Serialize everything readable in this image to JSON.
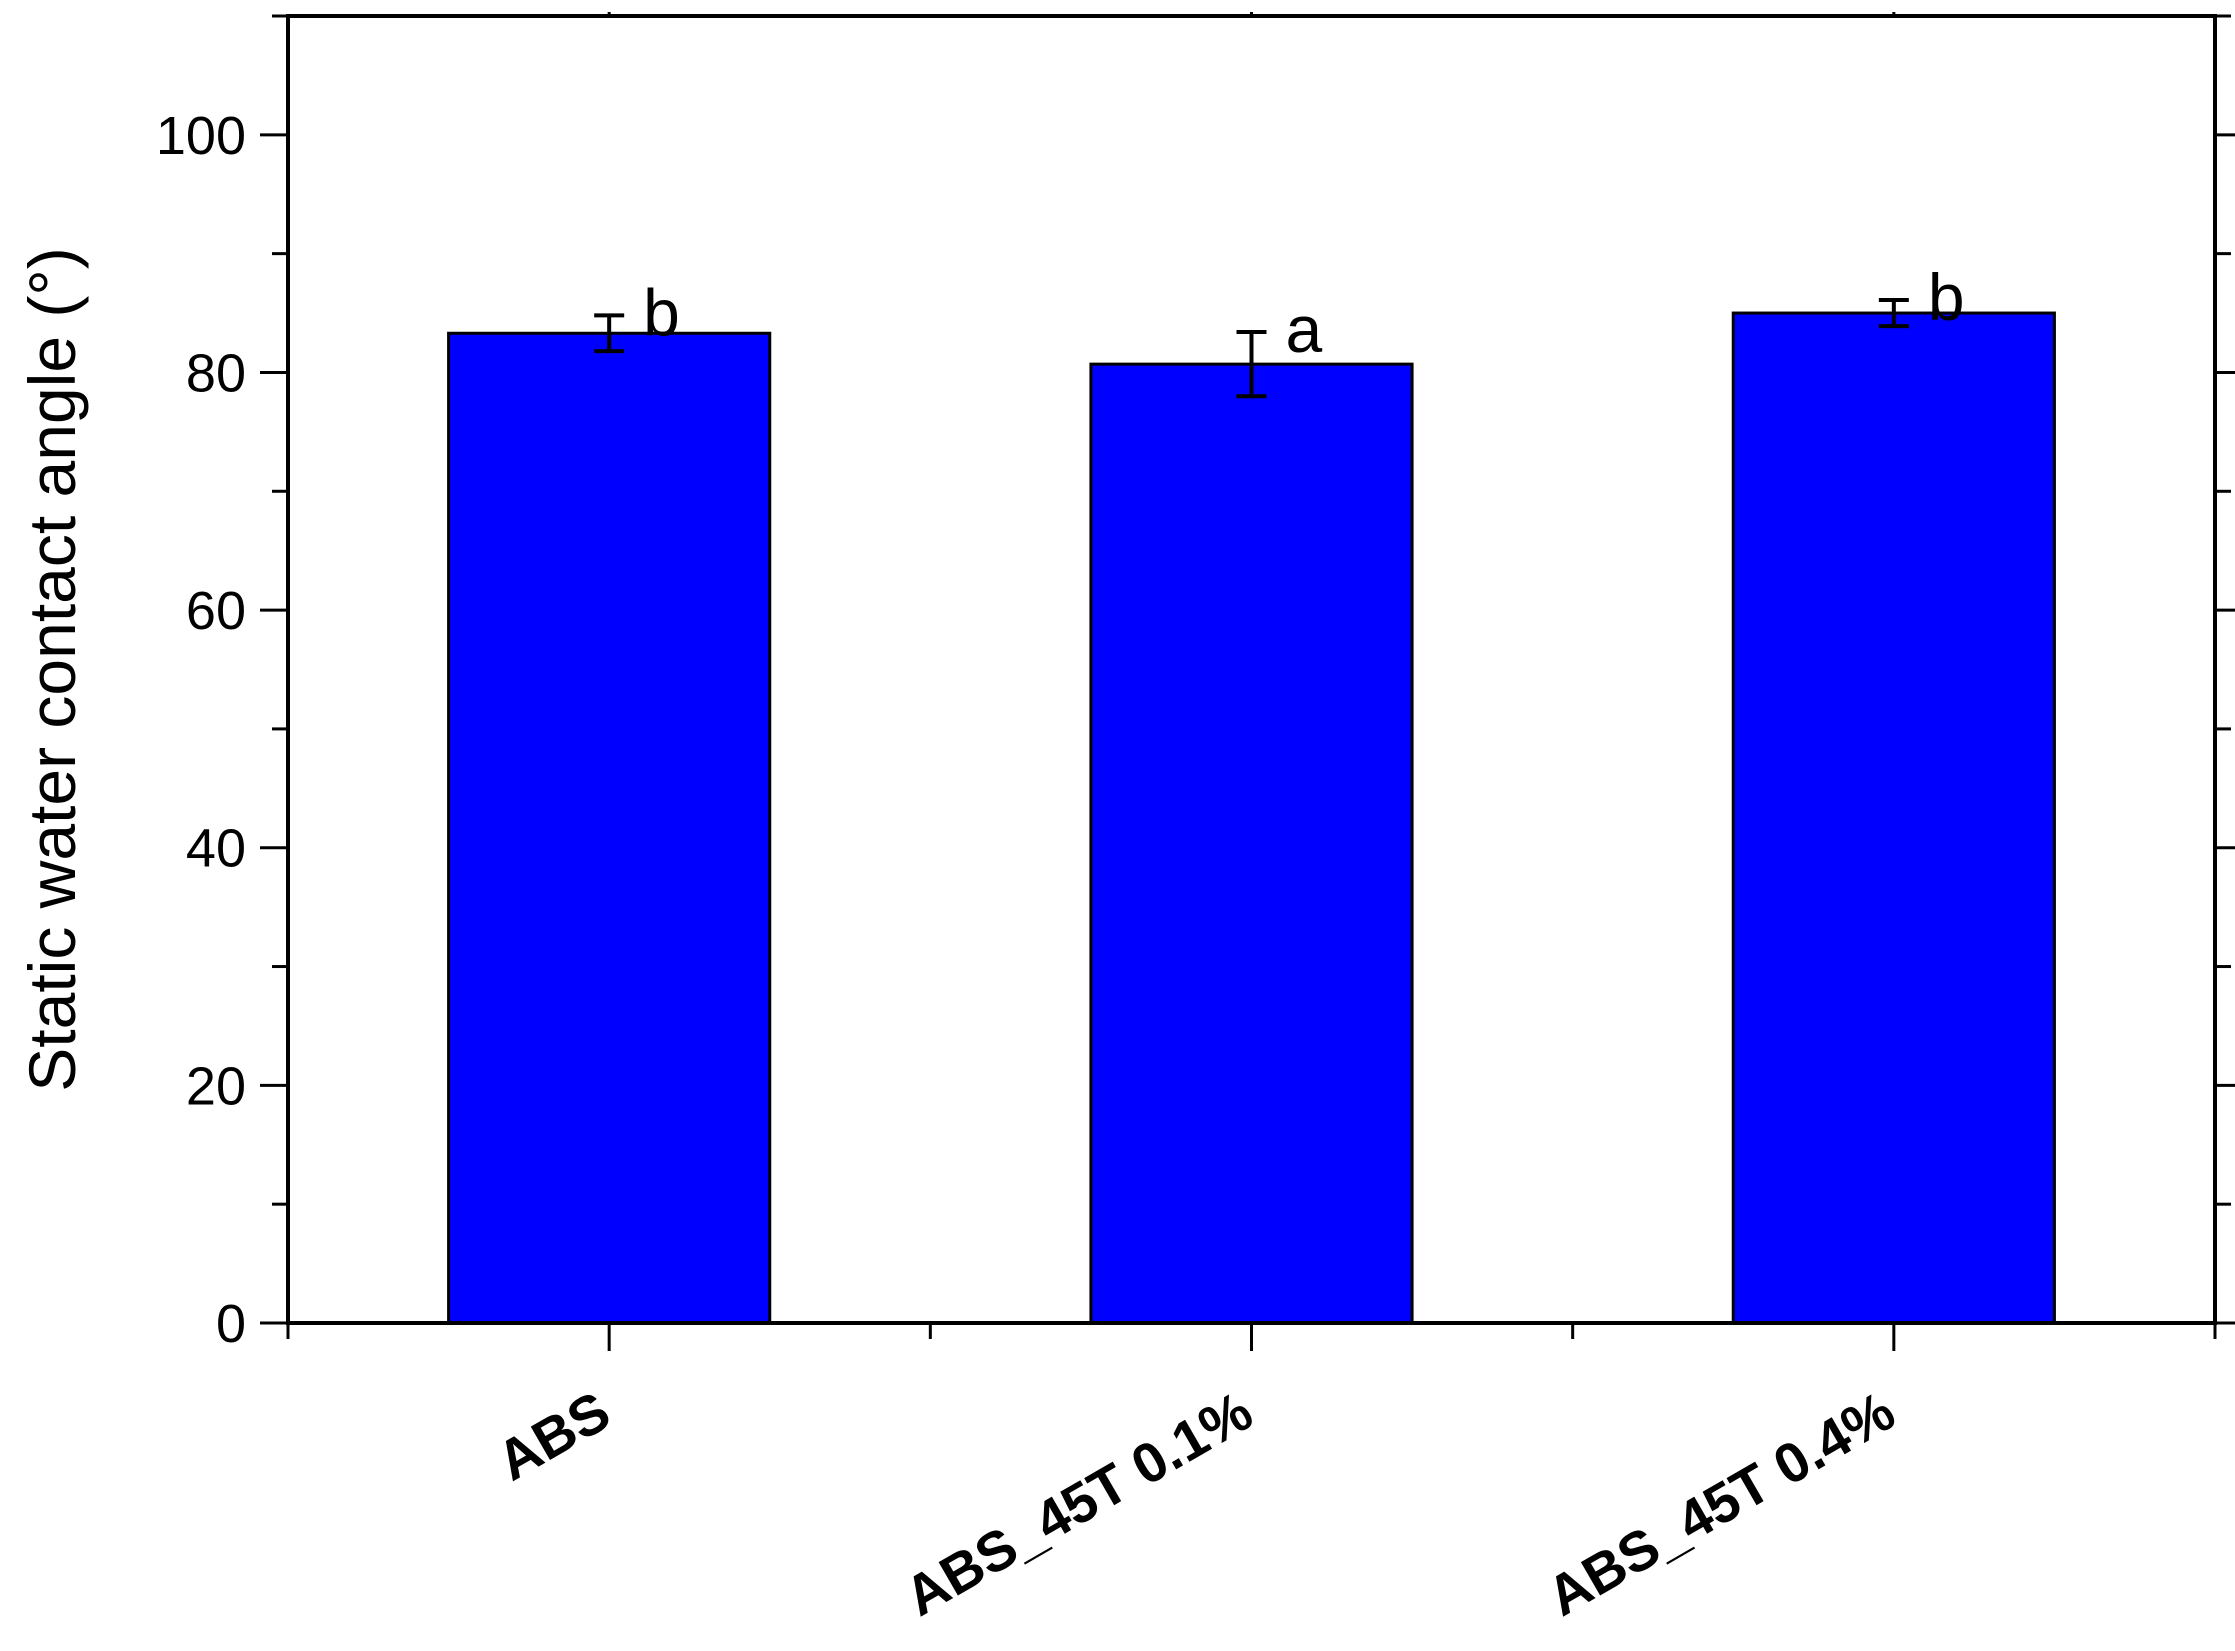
{
  "chart_data": {
    "type": "bar",
    "title": "",
    "xlabel": "",
    "ylabel": "Static water contact angle (°)",
    "ylim": [
      0,
      110
    ],
    "yticks": [
      0,
      20,
      40,
      60,
      80,
      100
    ],
    "yticks_labels": [
      "0",
      "20",
      "40",
      "60",
      "80",
      "100"
    ],
    "categories": [
      "ABS",
      "ABS_45T 0.1%",
      "ABS_45T 0.4%"
    ],
    "values": [
      83.3,
      80.7,
      85.0
    ],
    "errors": [
      1.5,
      2.7,
      1.1
    ],
    "significance_letters": [
      "b",
      "a",
      "b"
    ],
    "bar_color": "#0000ff",
    "grid": false,
    "legend": "none"
  }
}
